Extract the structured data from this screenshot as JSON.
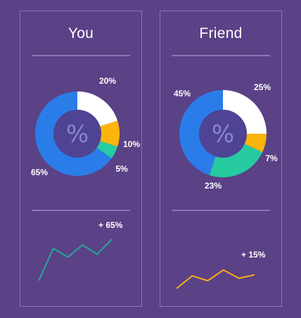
{
  "colors": {
    "background": "#5b4186",
    "card_border": "#8a76b4",
    "center_circle": "#4f4394",
    "center_symbol": "#8b86c8",
    "segment_white": "#ffffff",
    "segment_yellow": "#fbb50d",
    "segment_green": "#27cba0",
    "segment_blue": "#2a7de8",
    "trend_you": "#23a79a",
    "trend_friend": "#f6ae1a"
  },
  "chart_data": [
    {
      "type": "pie",
      "title": "You",
      "center_symbol": "%",
      "slices": [
        {
          "label": "20%",
          "value": 20,
          "color": "#ffffff"
        },
        {
          "label": "10%",
          "value": 10,
          "color": "#fbb50d"
        },
        {
          "label": "5%",
          "value": 5,
          "color": "#27cba0"
        },
        {
          "label": "65%",
          "value": 65,
          "color": "#2a7de8"
        }
      ],
      "trend": {
        "type": "line",
        "label": "+ 65%",
        "color": "#23a79a",
        "values": [
          0,
          45,
          33,
          50,
          37,
          58
        ]
      }
    },
    {
      "type": "pie",
      "title": "Friend",
      "center_symbol": "%",
      "slices": [
        {
          "label": "25%",
          "value": 25,
          "color": "#ffffff"
        },
        {
          "label": "7%",
          "value": 7,
          "color": "#fbb50d"
        },
        {
          "label": "23%",
          "value": 23,
          "color": "#27cba0"
        },
        {
          "label": "45%",
          "value": 45,
          "color": "#2a7de8"
        }
      ],
      "trend": {
        "type": "line",
        "label": "+ 15%",
        "color": "#f6ae1a",
        "values": [
          0,
          26,
          16,
          38,
          21,
          28
        ]
      }
    }
  ]
}
